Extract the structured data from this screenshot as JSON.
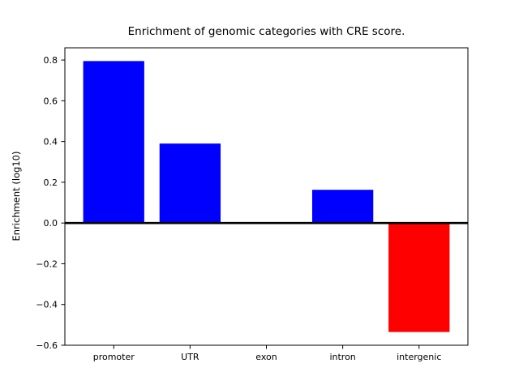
{
  "chart_data": {
    "type": "bar",
    "title": "Enrichment of genomic categories with CRE score.",
    "xlabel": "",
    "ylabel": "Enrichment (log10)",
    "categories": [
      "promoter",
      "UTR",
      "exon",
      "intron",
      "intergenic"
    ],
    "values": [
      0.795,
      0.39,
      0.0,
      0.163,
      -0.535
    ],
    "bar_colors": [
      "#0000ff",
      "#0000ff",
      "#0000ff",
      "#0000ff",
      "#ff0000"
    ],
    "positive_color": "#0000ff",
    "negative_color": "#ff0000",
    "bar_width": 0.8,
    "ylim": [
      -0.6,
      0.86
    ],
    "xlim": [
      -0.64,
      4.64
    ],
    "yticks": [
      -0.6,
      -0.4,
      -0.2,
      0.0,
      0.2,
      0.4,
      0.6,
      0.8
    ],
    "ytick_labels": [
      "−0.6",
      "−0.4",
      "−0.2",
      "0.0",
      "0.2",
      "0.4",
      "0.6",
      "0.8"
    ],
    "zero_line": true,
    "grid": false,
    "legend": null,
    "frame_color": "#000000",
    "background_color": "#ffffff"
  }
}
